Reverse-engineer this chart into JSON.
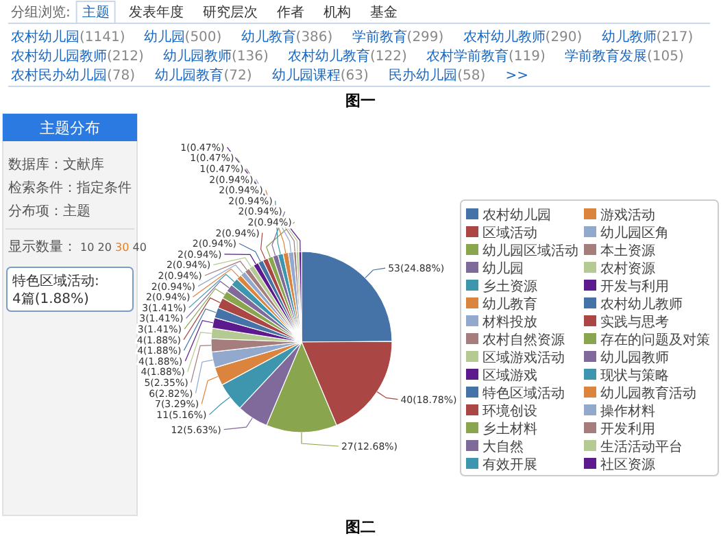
{
  "chart_data": {
    "type": "pie",
    "title": "主题分布",
    "categories": [
      "农村幼儿园",
      "区域活动",
      "幼儿园区域活动",
      "幼儿园",
      "乡土资源",
      "幼儿教育",
      "材料投放",
      "农村自然资源",
      "区域游戏活动",
      "区域游戏",
      "特色区域活动",
      "环境创设",
      "乡土材料",
      "大自然",
      "有效开展",
      "游戏活动",
      "幼儿园区角",
      "本土资源",
      "农村资源",
      "开发与利用",
      "农村幼儿教师",
      "实践与思考",
      "存在的问题及对策",
      "幼儿园教师",
      "现状与策略",
      "幼儿园教育活动",
      "操作材料",
      "开发利用",
      "生活活动平台",
      "社区资源"
    ],
    "values": [
      53,
      40,
      27,
      12,
      11,
      7,
      6,
      5,
      4,
      4,
      4,
      4,
      3,
      3,
      3,
      2,
      2,
      2,
      2,
      2,
      2,
      2,
      2,
      2,
      2,
      2,
      2,
      1,
      1,
      1
    ],
    "value_labels": [
      "53(24.88%)",
      "40(18.78%)",
      "27(12.68%)",
      "12(5.63%)",
      "11(5.16%)",
      "7(3.29%)",
      "6(2.82%)",
      "5(2.35%)",
      "4(1.88%)",
      "4(1.88%)",
      "4(1.88%)",
      "4(1.88%)",
      "3(1.41%)",
      "3(1.41%)",
      "3(1.41%)",
      "2(0.94%)",
      "2(0.94%)",
      "2(0.94%)",
      "2(0.94%)",
      "2(0.94%)",
      "2(0.94%)",
      "2(0.94%)",
      "2(0.94%)",
      "2(0.94%)",
      "2(0.94%)",
      "2(0.94%)",
      "2(0.94%)",
      "1(0.47%)",
      "1(0.47%)",
      "1(0.47%)"
    ],
    "colors": [
      "#4572a7",
      "#aa4643",
      "#89a54e",
      "#80699b",
      "#3d96ae",
      "#db843d",
      "#92a8cd",
      "#a47d7c",
      "#b5ca92",
      "#5c1a8c",
      "#4572a7",
      "#aa4643",
      "#89a54e",
      "#80699b",
      "#3d96ae",
      "#db843d",
      "#92a8cd",
      "#a47d7c",
      "#b5ca92",
      "#5c1a8c",
      "#4572a7",
      "#aa4643",
      "#89a54e",
      "#80699b",
      "#3d96ae",
      "#db843d",
      "#92a8cd",
      "#a47d7c",
      "#b5ca92",
      "#5c1a8c"
    ],
    "legend": "right",
    "annotations": [
      "分组浏览:",
      "主题",
      "发表年度",
      "研究层次",
      "作者",
      "机构",
      "基金",
      "农村幼儿园(1141)",
      "幼儿园(500)",
      "幼儿教育(386)",
      "学前教育(299)",
      "农村幼儿教师(290)",
      "幼儿教师(217)",
      "农村幼儿园教师(212)",
      "幼儿园教师(136)",
      "农村幼儿教育(122)",
      "农村学前教育(119)",
      "学前教育发展(105)",
      "农村民办幼儿园(78)",
      "幼儿园教育(72)",
      "幼儿园课程(63)",
      "民办幼儿园(58)",
      ">>",
      "图一",
      "数据库：文献库",
      "检索条件：指定条件",
      "分布项：主题",
      "显示数量：",
      "10",
      "20",
      "30",
      "40",
      "特色区域活动: 4篇(1.88%)",
      "图二"
    ]
  }
}
